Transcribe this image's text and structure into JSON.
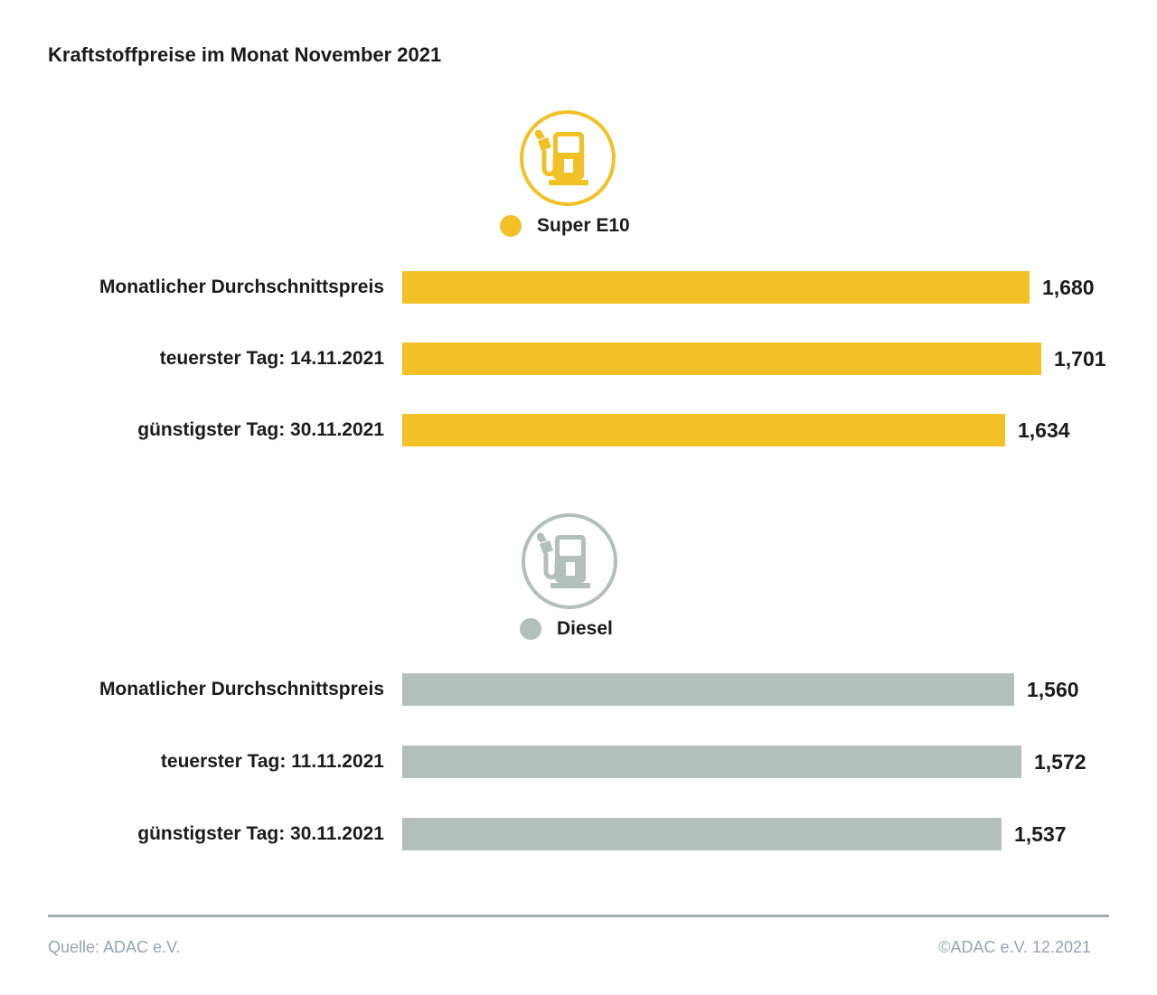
{
  "title": "Kraftstoffpreise im Monat November 2021",
  "chart_data": {
    "type": "bar",
    "orientation": "horizontal",
    "title": "Kraftstoffpreise im Monat November 2021",
    "grid": false,
    "axes_shown": false,
    "value_labels_position": "right-of-bar",
    "groups": [
      {
        "name": "Super E10",
        "color": "#f2c126",
        "icon": "fuel-pump-icon",
        "rows": [
          {
            "label": "Monatlicher Durchschnittspreis",
            "value": 1.68,
            "value_label": "1,680"
          },
          {
            "label": "teuerster Tag: 14.11.2021",
            "value": 1.701,
            "value_label": "1,701"
          },
          {
            "label": "günstigster Tag: 30.11.2021",
            "value": 1.634,
            "value_label": "1,634"
          }
        ]
      },
      {
        "name": "Diesel",
        "color": "#b3bfbb",
        "icon": "fuel-pump-icon",
        "rows": [
          {
            "label": "Monatlicher Durchschnittspreis",
            "value": 1.56,
            "value_label": "1,560"
          },
          {
            "label": "teuerster Tag: 11.11.2021",
            "value": 1.572,
            "value_label": "1,572"
          },
          {
            "label": "günstigster Tag: 30.11.2021",
            "value": 1.537,
            "value_label": "1,537"
          }
        ]
      }
    ]
  },
  "footer": {
    "source": "Quelle: ADAC e.V.",
    "copyright": "©ADAC e.V. 12.2021"
  }
}
